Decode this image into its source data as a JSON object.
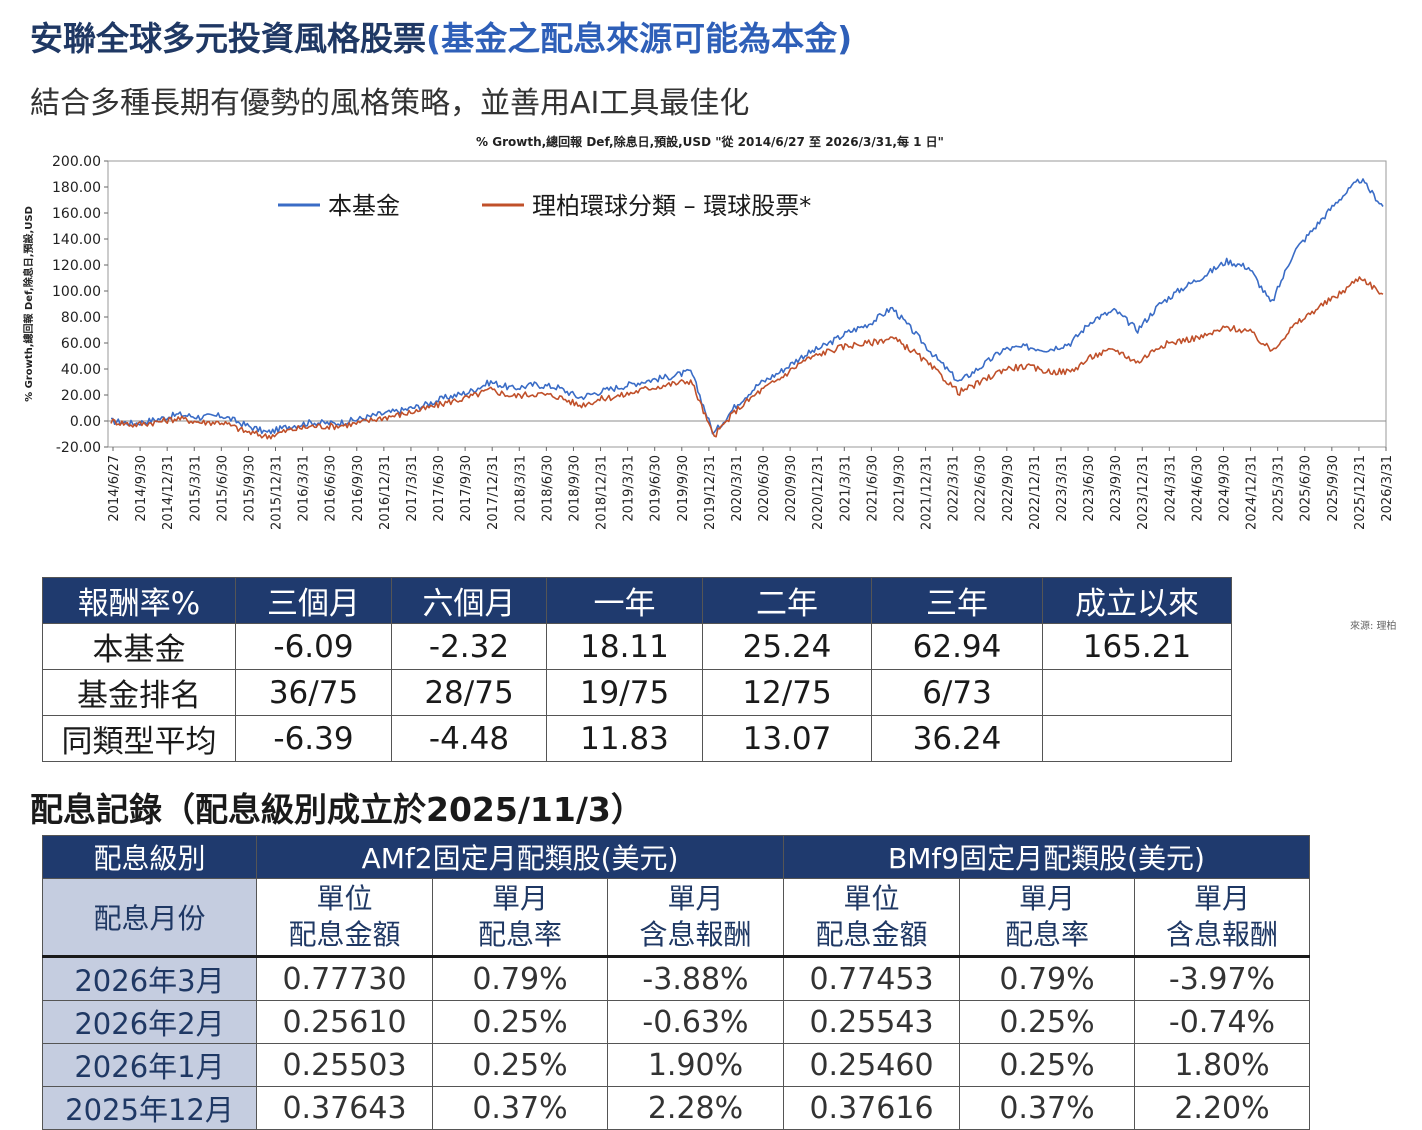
{
  "header": {
    "title_main": "安聯全球多元投資風格股票",
    "title_note": "(基金之配息來源可能為本金)",
    "subtitle": "結合多種長期有優勢的風格策略，並善用AI工具最佳化"
  },
  "chart_data": {
    "type": "line",
    "title": "% Growth,總回報 Def,除息日,預設,USD \"從 2014/6/27 至 2026/3/31,每 1 日\"",
    "ylabel": "% Growth,總回報 Def,除息日,預設,USD",
    "xlabel": "",
    "ylim": [
      -20,
      200
    ],
    "yticks": [
      "200.00",
      "180.00",
      "160.00",
      "140.00",
      "120.00",
      "100.00",
      "80.00",
      "60.00",
      "40.00",
      "20.00",
      "0.00",
      "-20.00"
    ],
    "x_tick_labels": [
      "2014/6/27",
      "2014/9/30",
      "2014/12/31",
      "2015/3/31",
      "2015/6/30",
      "2015/9/30",
      "2015/12/31",
      "2016/3/31",
      "2016/6/30",
      "2016/9/30",
      "2016/12/31",
      "2017/3/31",
      "2017/6/30",
      "2017/9/30",
      "2017/12/31",
      "2018/3/31",
      "2018/6/30",
      "2018/9/30",
      "2018/12/31",
      "2019/3/31",
      "2019/6/30",
      "2019/9/30",
      "2019/12/31",
      "2020/3/31",
      "2020/6/30",
      "2020/9/30",
      "2020/12/31",
      "2021/3/31",
      "2021/6/30",
      "2021/9/30",
      "2021/12/31",
      "2022/3/31",
      "2022/6/30",
      "2022/9/30",
      "2022/12/31",
      "2023/3/31",
      "2023/6/30",
      "2023/9/30",
      "2023/12/31",
      "2024/3/31",
      "2024/6/30",
      "2024/9/30",
      "2024/12/31",
      "2025/3/31",
      "2025/6/30",
      "2025/9/30",
      "2025/12/31",
      "2026/3/31"
    ],
    "legend_position": "top-left",
    "grid": false,
    "series": [
      {
        "name": "本基金",
        "color": "#3a6cc6",
        "values": [
          0,
          -2,
          1,
          5,
          3,
          4,
          -3,
          -9,
          -4,
          -1,
          -2,
          1,
          5,
          8,
          12,
          18,
          22,
          30,
          25,
          28,
          26,
          18,
          23,
          27,
          31,
          34,
          38,
          -10,
          12,
          28,
          38,
          50,
          58,
          68,
          75,
          87,
          68,
          48,
          30,
          42,
          55,
          57,
          55,
          60,
          78,
          85,
          70,
          90,
          102,
          112,
          123,
          118,
          90,
          130,
          150,
          170,
          186,
          165
        ]
      },
      {
        "name": "理柏環球分類 – 環球股票*",
        "color": "#c0502a",
        "values": [
          0,
          -3,
          -1,
          2,
          -1,
          -1,
          -8,
          -12,
          -7,
          -4,
          -4,
          -2,
          2,
          5,
          9,
          14,
          18,
          24,
          19,
          21,
          19,
          12,
          17,
          20,
          25,
          28,
          31,
          -12,
          8,
          22,
          33,
          46,
          53,
          58,
          60,
          64,
          53,
          38,
          22,
          30,
          40,
          42,
          38,
          38,
          50,
          55,
          45,
          58,
          62,
          65,
          72,
          69,
          54,
          73,
          86,
          97,
          111,
          97
        ]
      }
    ]
  },
  "source": "來源: 理柏",
  "performance_table": {
    "headers": [
      "報酬率%",
      "三個月",
      "六個月",
      "一年",
      "二年",
      "三年",
      "成立以來"
    ],
    "rows": [
      [
        "本基金",
        "-6.09",
        "-2.32",
        "18.11",
        "25.24",
        "62.94",
        "165.21"
      ],
      [
        "基金排名",
        "36/75",
        "28/75",
        "19/75",
        "12/75",
        "6/73",
        ""
      ],
      [
        "同類型平均",
        "-6.39",
        "-4.48",
        "11.83",
        "13.07",
        "36.24",
        ""
      ]
    ]
  },
  "dividend_section_title": "配息記錄（配息級別成立於2025/11/3）",
  "dividend_table": {
    "class_label": "配息級別",
    "month_label": "配息月份",
    "class_a": "AMf2固定月配類股(美元)",
    "class_b": "BMf9固定月配類股(美元)",
    "sub_headers": [
      [
        "單位",
        "配息金額"
      ],
      [
        "單月",
        "配息率"
      ],
      [
        "單月",
        "含息報酬"
      ],
      [
        "單位",
        "配息金額"
      ],
      [
        "單月",
        "配息率"
      ],
      [
        "單月",
        "含息報酬"
      ]
    ],
    "rows": [
      [
        "2026年3月",
        "0.77730",
        "0.79%",
        "-3.88%",
        "0.77453",
        "0.79%",
        "-3.97%"
      ],
      [
        "2026年2月",
        "0.25610",
        "0.25%",
        "-0.63%",
        "0.25543",
        "0.25%",
        "-0.74%"
      ],
      [
        "2026年1月",
        "0.25503",
        "0.25%",
        "1.90%",
        "0.25460",
        "0.25%",
        "1.80%"
      ],
      [
        "2025年12月",
        "0.37643",
        "0.37%",
        "2.28%",
        "0.37616",
        "0.37%",
        "2.20%"
      ]
    ]
  }
}
